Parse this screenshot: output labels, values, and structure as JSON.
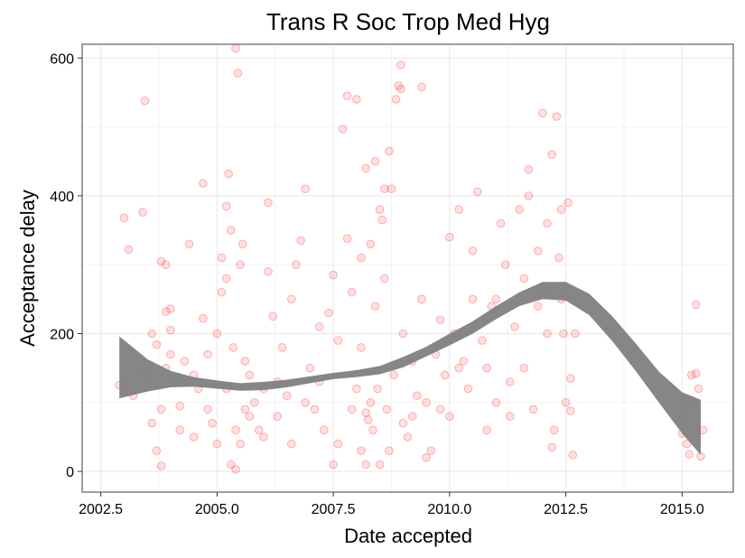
{
  "chart_data": {
    "type": "scatter",
    "title": "Trans R Soc Trop Med Hyg",
    "xlabel": "Date accepted",
    "ylabel": "Acceptance delay",
    "xlim": [
      2002.1,
      2016.1
    ],
    "ylim": [
      -30,
      620
    ],
    "x_ticks": [
      2002.5,
      2005.0,
      2007.5,
      2010.0,
      2012.5,
      2015.0
    ],
    "x_tick_labels": [
      "2002.5",
      "2005.0",
      "2007.5",
      "2010.0",
      "2012.5",
      "2015.0"
    ],
    "y_ticks": [
      0,
      200,
      400,
      600
    ],
    "y_tick_labels": [
      "0",
      "200",
      "400",
      "600"
    ],
    "grid": true,
    "point_color": "#ff0000",
    "band_color": "#808080",
    "smooth_band": {
      "x": [
        2002.9,
        2003.5,
        2004.0,
        2004.5,
        2005.0,
        2005.5,
        2006.0,
        2006.5,
        2007.0,
        2007.5,
        2008.0,
        2008.5,
        2009.0,
        2009.5,
        2010.0,
        2010.5,
        2011.0,
        2011.5,
        2012.0,
        2012.5,
        2013.0,
        2013.5,
        2014.0,
        2014.5,
        2015.0,
        2015.4
      ],
      "lower": [
        106,
        116,
        122,
        123,
        120,
        117,
        118,
        122,
        128,
        134,
        137,
        141,
        151,
        167,
        183,
        200,
        221,
        240,
        250,
        248,
        227,
        189,
        146,
        100,
        55,
        24
      ],
      "upper": [
        196,
        163,
        146,
        137,
        132,
        128,
        130,
        133,
        138,
        143,
        147,
        153,
        166,
        181,
        200,
        218,
        240,
        260,
        275,
        275,
        258,
        225,
        186,
        145,
        115,
        104
      ]
    },
    "points": [
      [
        2003.0,
        368
      ],
      [
        2003.1,
        322
      ],
      [
        2003.4,
        376
      ],
      [
        2003.45,
        538
      ],
      [
        2002.9,
        125
      ],
      [
        2003.6,
        200
      ],
      [
        2003.7,
        184
      ],
      [
        2003.8,
        305
      ],
      [
        2003.9,
        300
      ],
      [
        2003.9,
        232
      ],
      [
        2004.0,
        236
      ],
      [
        2004.0,
        205
      ],
      [
        2003.6,
        70
      ],
      [
        2003.7,
        30
      ],
      [
        2003.8,
        8
      ],
      [
        2003.9,
        150
      ],
      [
        2004.1,
        130
      ],
      [
        2004.2,
        95
      ],
      [
        2004.3,
        160
      ],
      [
        2004.4,
        330
      ],
      [
        2004.5,
        50
      ],
      [
        2004.6,
        120
      ],
      [
        2004.7,
        418
      ],
      [
        2004.7,
        222
      ],
      [
        2004.8,
        90
      ],
      [
        2004.9,
        70
      ],
      [
        2005.0,
        200
      ],
      [
        2005.1,
        260
      ],
      [
        2005.1,
        310
      ],
      [
        2005.2,
        280
      ],
      [
        2005.2,
        385
      ],
      [
        2005.25,
        432
      ],
      [
        2005.3,
        350
      ],
      [
        2005.35,
        180
      ],
      [
        2005.4,
        614
      ],
      [
        2005.45,
        578
      ],
      [
        2005.5,
        300
      ],
      [
        2005.55,
        330
      ],
      [
        2005.6,
        160
      ],
      [
        2005.3,
        10
      ],
      [
        2005.4,
        3
      ],
      [
        2005.5,
        40
      ],
      [
        2005.6,
        90
      ],
      [
        2005.7,
        140
      ],
      [
        2005.8,
        100
      ],
      [
        2005.9,
        60
      ],
      [
        2006.0,
        120
      ],
      [
        2006.1,
        290
      ],
      [
        2006.1,
        390
      ],
      [
        2006.2,
        225
      ],
      [
        2006.3,
        80
      ],
      [
        2006.4,
        180
      ],
      [
        2006.5,
        110
      ],
      [
        2006.6,
        250
      ],
      [
        2006.7,
        300
      ],
      [
        2006.8,
        335
      ],
      [
        2006.9,
        410
      ],
      [
        2007.0,
        150
      ],
      [
        2007.1,
        90
      ],
      [
        2007.2,
        210
      ],
      [
        2007.3,
        60
      ],
      [
        2007.4,
        230
      ],
      [
        2007.5,
        285
      ],
      [
        2007.6,
        190
      ],
      [
        2007.7,
        497
      ],
      [
        2007.8,
        545
      ],
      [
        2007.8,
        338
      ],
      [
        2007.9,
        260
      ],
      [
        2008.0,
        540
      ],
      [
        2008.0,
        120
      ],
      [
        2008.1,
        310
      ],
      [
        2008.1,
        180
      ],
      [
        2008.2,
        440
      ],
      [
        2008.2,
        85
      ],
      [
        2008.25,
        75
      ],
      [
        2008.3,
        100
      ],
      [
        2008.3,
        330
      ],
      [
        2008.35,
        60
      ],
      [
        2008.4,
        450
      ],
      [
        2008.4,
        240
      ],
      [
        2008.45,
        120
      ],
      [
        2008.5,
        380
      ],
      [
        2008.55,
        365
      ],
      [
        2008.6,
        410
      ],
      [
        2008.6,
        280
      ],
      [
        2008.65,
        90
      ],
      [
        2008.7,
        465
      ],
      [
        2008.75,
        410
      ],
      [
        2008.8,
        140
      ],
      [
        2008.85,
        540
      ],
      [
        2008.9,
        560
      ],
      [
        2008.95,
        590
      ],
      [
        2008.95,
        555
      ],
      [
        2009.0,
        200
      ],
      [
        2009.1,
        50
      ],
      [
        2009.2,
        160
      ],
      [
        2009.3,
        110
      ],
      [
        2009.4,
        558
      ],
      [
        2009.4,
        250
      ],
      [
        2009.5,
        100
      ],
      [
        2009.6,
        30
      ],
      [
        2009.7,
        170
      ],
      [
        2009.8,
        220
      ],
      [
        2009.9,
        140
      ],
      [
        2010.0,
        340
      ],
      [
        2010.0,
        80
      ],
      [
        2010.1,
        200
      ],
      [
        2010.2,
        380
      ],
      [
        2010.3,
        160
      ],
      [
        2010.4,
        120
      ],
      [
        2010.5,
        320
      ],
      [
        2010.6,
        406
      ],
      [
        2010.7,
        190
      ],
      [
        2010.8,
        60
      ],
      [
        2010.9,
        240
      ],
      [
        2011.0,
        100
      ],
      [
        2011.1,
        360
      ],
      [
        2011.2,
        300
      ],
      [
        2011.3,
        130
      ],
      [
        2011.4,
        210
      ],
      [
        2011.5,
        380
      ],
      [
        2011.6,
        280
      ],
      [
        2011.7,
        438
      ],
      [
        2011.7,
        400
      ],
      [
        2011.8,
        90
      ],
      [
        2011.9,
        320
      ],
      [
        2012.0,
        520
      ],
      [
        2012.0,
        260
      ],
      [
        2012.1,
        360
      ],
      [
        2012.2,
        460
      ],
      [
        2012.2,
        35
      ],
      [
        2012.25,
        60
      ],
      [
        2012.3,
        515
      ],
      [
        2012.35,
        310
      ],
      [
        2012.4,
        380
      ],
      [
        2012.45,
        200
      ],
      [
        2012.5,
        100
      ],
      [
        2012.55,
        390
      ],
      [
        2012.6,
        135
      ],
      [
        2012.6,
        88
      ],
      [
        2012.65,
        24
      ],
      [
        2012.7,
        200
      ],
      [
        2015.0,
        55
      ],
      [
        2015.05,
        80
      ],
      [
        2015.1,
        40
      ],
      [
        2015.15,
        25
      ],
      [
        2015.2,
        140
      ],
      [
        2015.25,
        100
      ],
      [
        2015.3,
        142
      ],
      [
        2015.3,
        242
      ],
      [
        2015.35,
        120
      ],
      [
        2015.4,
        22
      ],
      [
        2015.45,
        60
      ],
      [
        2003.2,
        110
      ],
      [
        2003.5,
        140
      ],
      [
        2003.8,
        90
      ],
      [
        2004.0,
        170
      ],
      [
        2004.2,
        60
      ],
      [
        2004.5,
        140
      ],
      [
        2004.8,
        170
      ],
      [
        2005.0,
        40
      ],
      [
        2005.2,
        120
      ],
      [
        2005.4,
        60
      ],
      [
        2005.7,
        80
      ],
      [
        2006.0,
        50
      ],
      [
        2006.3,
        130
      ],
      [
        2006.6,
        40
      ],
      [
        2006.9,
        100
      ],
      [
        2007.2,
        130
      ],
      [
        2007.5,
        10
      ],
      [
        2007.6,
        40
      ],
      [
        2007.9,
        90
      ],
      [
        2008.1,
        30
      ],
      [
        2008.2,
        10
      ],
      [
        2008.5,
        10
      ],
      [
        2008.7,
        30
      ],
      [
        2009.0,
        70
      ],
      [
        2009.2,
        80
      ],
      [
        2009.5,
        20
      ],
      [
        2009.8,
        90
      ],
      [
        2010.2,
        150
      ],
      [
        2010.5,
        250
      ],
      [
        2010.8,
        150
      ],
      [
        2011.0,
        250
      ],
      [
        2011.3,
        80
      ],
      [
        2011.6,
        150
      ],
      [
        2011.9,
        240
      ],
      [
        2012.1,
        200
      ],
      [
        2012.4,
        250
      ]
    ]
  }
}
